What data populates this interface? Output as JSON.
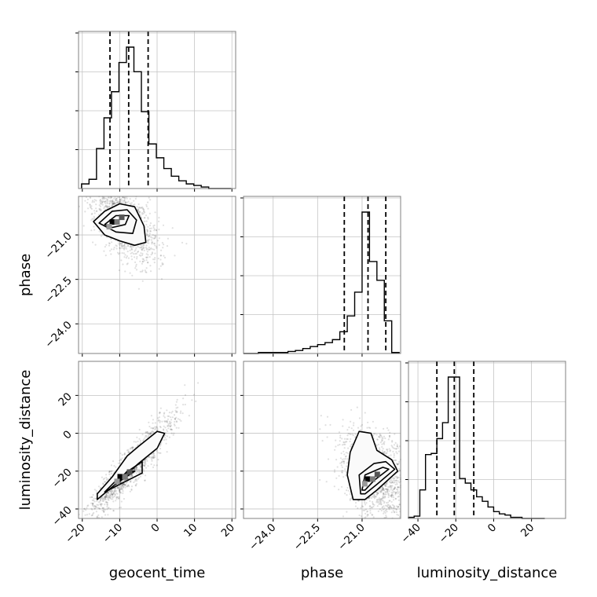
{
  "chart_data": {
    "type": "corner",
    "parameters": [
      "geocent_time",
      "phase",
      "luminosity_distance"
    ],
    "grid": true,
    "quantile_lines": "dashed",
    "ranges": {
      "geocent_time": [
        -21,
        21
      ],
      "phase": [
        -25.0,
        -19.7
      ],
      "luminosity_distance": [
        -45,
        38
      ]
    },
    "ticks": {
      "geocent_time": [
        -20,
        -10,
        0,
        10,
        20
      ],
      "phase": [
        -24.0,
        -22.5,
        -21.0
      ],
      "luminosity_distance": [
        -40,
        -20,
        0,
        20
      ]
    },
    "tick_labels": {
      "geocent_time": [
        "−20",
        "−10",
        "0",
        "10",
        "20"
      ],
      "phase": [
        "−24.0",
        "−22.5",
        "−21.0"
      ],
      "luminosity_distance": [
        "−40",
        "−20",
        "0",
        "20"
      ]
    },
    "axis_labels": {
      "geocent_time": "geocent_time",
      "phase": "phase",
      "luminosity_distance": "luminosity_distance"
    },
    "quantiles": {
      "geocent_time": [
        -12.6,
        -7.6,
        -2.4
      ],
      "phase": [
        -21.6,
        -20.8,
        -20.2
      ],
      "luminosity_distance": [
        -30,
        -20.8,
        -10.5
      ]
    },
    "histograms": {
      "geocent_time": {
        "bin_edges": [
          -20.2,
          -18.2,
          -16.2,
          -14.2,
          -12.2,
          -10.2,
          -8.2,
          -6.2,
          -4.2,
          -2.2,
          -0.2,
          1.8,
          3.8,
          5.8,
          7.8,
          9.8,
          11.8,
          13.8,
          15.8,
          17.8,
          19.8
        ],
        "counts": [
          3,
          6,
          26,
          46,
          63,
          82,
          92,
          76,
          50,
          29,
          20,
          13,
          8,
          5,
          3,
          2,
          1,
          0,
          0,
          0
        ]
      },
      "phase": {
        "bin_edges": [
          -25.0,
          -24.75,
          -24.5,
          -24.25,
          -24.0,
          -23.75,
          -23.5,
          -23.25,
          -23.0,
          -22.75,
          -22.5,
          -22.25,
          -22.0,
          -21.75,
          -21.5,
          -21.25,
          -21.0,
          -20.75,
          -20.5,
          -20.25,
          -20.0,
          -19.75
        ],
        "counts": [
          0,
          0,
          1,
          1,
          1,
          1,
          2,
          3,
          5,
          7,
          9,
          11,
          14,
          22,
          38,
          62,
          143,
          93,
          74,
          33,
          1
        ]
      },
      "luminosity_distance": {
        "bin_edges": [
          -45,
          -42,
          -39,
          -36,
          -33,
          -30,
          -27,
          -24,
          -21,
          -18,
          -15,
          -12,
          -9,
          -6,
          -3,
          0,
          3,
          6,
          9,
          12,
          15,
          18,
          21,
          24,
          27
        ],
        "counts": [
          1,
          2,
          25,
          56,
          57,
          70,
          84,
          124,
          124,
          35,
          31,
          25,
          19,
          15,
          10,
          6,
          4,
          3,
          1,
          1,
          0,
          0,
          0,
          0
        ]
      }
    },
    "joint_2d": {
      "phase_vs_geocent_time": {
        "mean": [
          -9,
          -20.55
        ],
        "std": [
          4.5,
          0.7
        ],
        "contours": [
          [
            [
              -17,
              -20.55
            ],
            [
              -14,
              -20.2
            ],
            [
              -10,
              -19.95
            ],
            [
              -6,
              -20.05
            ],
            [
              -3.5,
              -20.7
            ],
            [
              -3,
              -21.25
            ],
            [
              -6,
              -21.35
            ],
            [
              -10,
              -21.2
            ],
            [
              -14,
              -21.0
            ]
          ],
          [
            [
              -15.5,
              -20.6
            ],
            [
              -12,
              -20.2
            ],
            [
              -8,
              -20.15
            ],
            [
              -5.5,
              -20.5
            ],
            [
              -6.5,
              -20.95
            ],
            [
              -11,
              -20.9
            ]
          ],
          [
            [
              -14,
              -20.65
            ],
            [
              -11,
              -20.35
            ],
            [
              -7.5,
              -20.35
            ],
            [
              -8.5,
              -20.65
            ],
            [
              -12,
              -20.75
            ]
          ]
        ]
      },
      "luminosity_distance_vs_geocent_time": {
        "mean": [
          -7,
          -18
        ],
        "std": [
          5.5,
          13
        ],
        "contours": [
          [
            [
              -16,
              -35
            ],
            [
              -10,
              -25
            ],
            [
              -5,
              -16
            ],
            [
              0,
              -8
            ],
            [
              2,
              0
            ],
            [
              0,
              1
            ],
            [
              -5,
              -7
            ],
            [
              -8,
              -12
            ],
            [
              -12,
              -23
            ],
            [
              -16,
              -32
            ]
          ],
          [
            [
              -14,
              -31
            ],
            [
              -11,
              -25
            ],
            [
              -7,
              -19
            ],
            [
              -4,
              -15
            ],
            [
              -4,
              -21
            ],
            [
              -8,
              -25
            ],
            [
              -12,
              -29
            ]
          ],
          [
            [
              -11,
              -27
            ],
            [
              -8,
              -20
            ],
            [
              -6,
              -20
            ],
            [
              -9,
              -24
            ]
          ]
        ]
      },
      "luminosity_distance_vs_phase": {
        "mean": [
          -20.5,
          -22
        ],
        "std": [
          0.6,
          12
        ],
        "contours": [
          [
            [
              -21.3,
              -35
            ],
            [
              -21.5,
              -22
            ],
            [
              -21.4,
              -10
            ],
            [
              -21.1,
              1
            ],
            [
              -20.7,
              0
            ],
            [
              -20.5,
              -9
            ],
            [
              -20.0,
              -14
            ],
            [
              -19.8,
              -20
            ],
            [
              -20.5,
              -30
            ],
            [
              -20.9,
              -35
            ]
          ],
          [
            [
              -21.05,
              -32
            ],
            [
              -21.1,
              -22
            ],
            [
              -20.6,
              -16
            ],
            [
              -20.2,
              -15
            ],
            [
              -19.9,
              -19
            ],
            [
              -20.5,
              -27
            ],
            [
              -20.9,
              -32
            ]
          ],
          [
            [
              -21.0,
              -30
            ],
            [
              -20.9,
              -22
            ],
            [
              -20.3,
              -18
            ],
            [
              -20.1,
              -19
            ],
            [
              -20.6,
              -25
            ],
            [
              -20.9,
              -30
            ]
          ]
        ]
      }
    }
  }
}
